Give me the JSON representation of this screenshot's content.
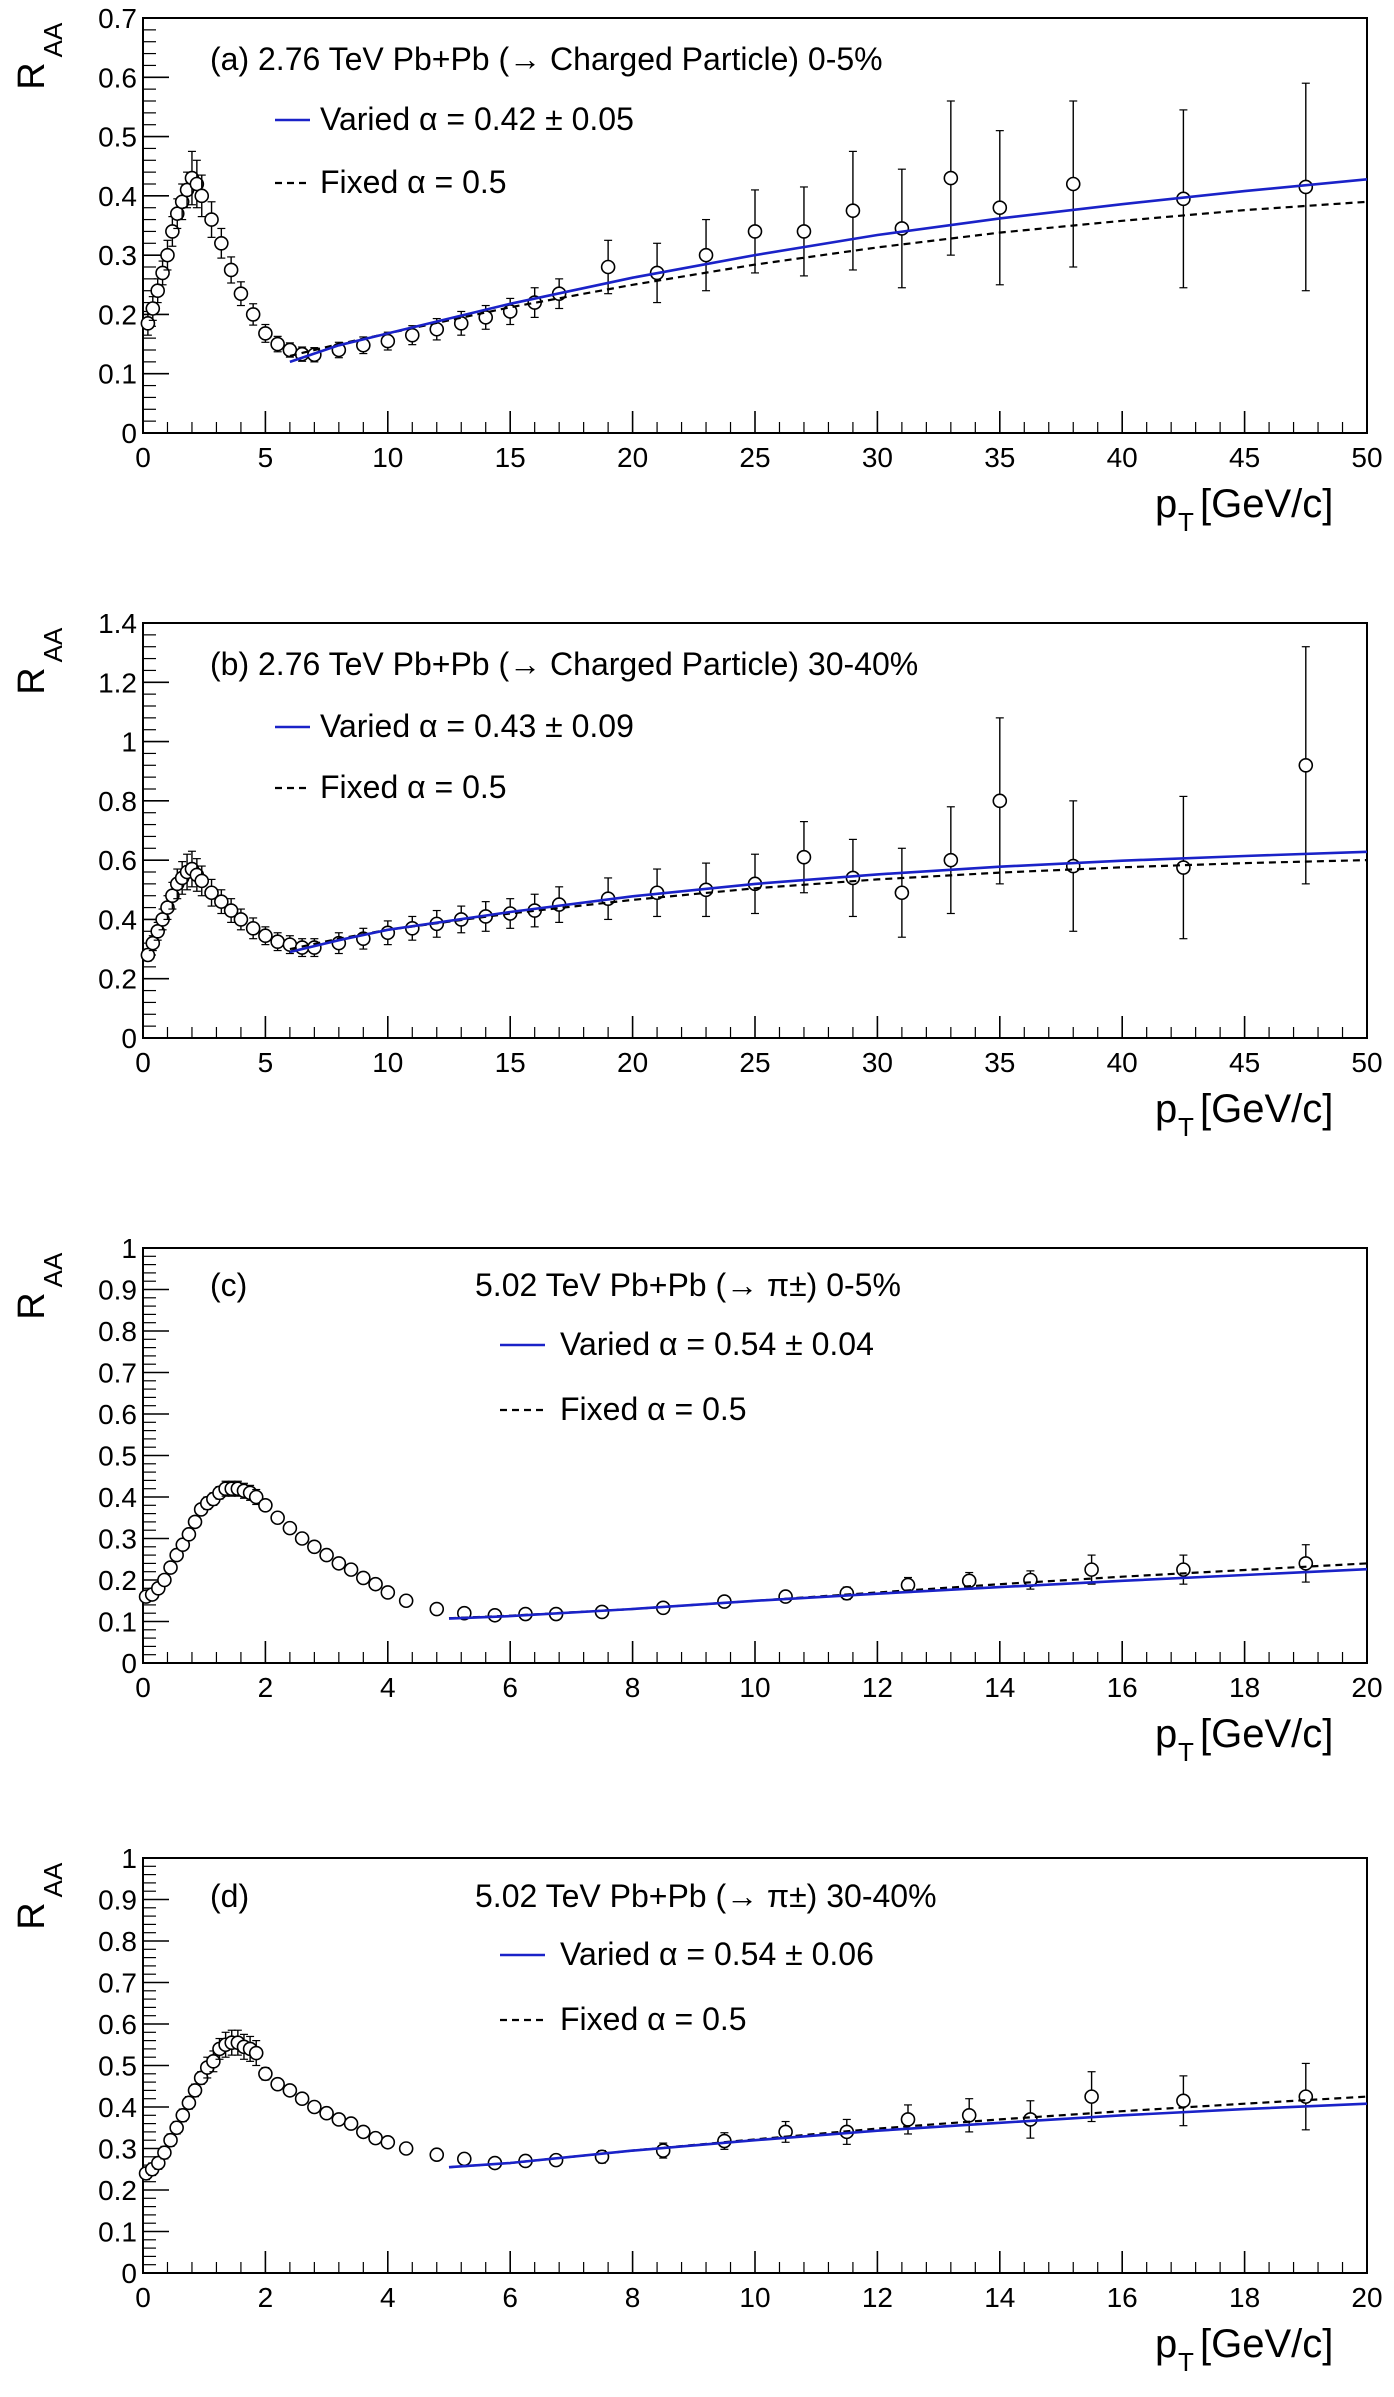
{
  "chart_data": [
    {
      "type": "scatter",
      "panel_label": "(a)",
      "title": "2.76 TeV Pb+Pb (→ Charged Particle) 0-5%",
      "ylabel": "R",
      "ylabel_sub": "AA",
      "xlabel": "p",
      "xlabel_sub": "T",
      "xlabel_unit": "[GeV/c]",
      "xlim": [
        0,
        50
      ],
      "ylim": [
        0,
        0.7
      ],
      "xticks": [
        0,
        5,
        10,
        15,
        20,
        25,
        30,
        35,
        40,
        45,
        50
      ],
      "yticks": [
        0,
        0.1,
        0.2,
        0.3,
        0.4,
        0.5,
        0.6,
        0.7
      ],
      "xtick_labels": [
        "0",
        "5",
        "10",
        "15",
        "20",
        "25",
        "30",
        "35",
        "40",
        "45",
        "50"
      ],
      "ytick_labels": [
        "0",
        "0.1",
        "0.2",
        "0.3",
        "0.4",
        "0.5",
        "0.6",
        "0.7"
      ],
      "grid": false,
      "legend_position": "top-left",
      "series": [
        {
          "name": "Varied α = 0.42 ± 0.05",
          "kind": "line",
          "style": "solid",
          "color": "#1a22c8",
          "x": [
            6.0,
            8,
            10,
            15,
            20,
            25,
            30,
            35,
            40,
            45,
            50
          ],
          "y": [
            0.12,
            0.148,
            0.168,
            0.218,
            0.262,
            0.3,
            0.334,
            0.362,
            0.386,
            0.408,
            0.428
          ]
        },
        {
          "name": "Fixed α = 0.5",
          "kind": "line",
          "style": "dashed",
          "color": "#000000",
          "x": [
            6.0,
            8,
            10,
            15,
            20,
            25,
            30,
            35,
            40,
            45,
            50
          ],
          "y": [
            0.13,
            0.15,
            0.168,
            0.212,
            0.25,
            0.284,
            0.313,
            0.338,
            0.358,
            0.376,
            0.39
          ]
        },
        {
          "name": "data",
          "kind": "points",
          "x": [
            0.2,
            0.4,
            0.6,
            0.8,
            1.0,
            1.2,
            1.4,
            1.6,
            1.8,
            2.0,
            2.2,
            2.4,
            2.8,
            3.2,
            3.6,
            4.0,
            4.5,
            5.0,
            5.5,
            6.0,
            6.5,
            7.0,
            8.0,
            9.0,
            10.0,
            11.0,
            12.0,
            13.0,
            14.0,
            15.0,
            16.0,
            17.0,
            19.0,
            21.0,
            23.0,
            25.0,
            27.0,
            29.0,
            31.0,
            33.0,
            35.0,
            38.0,
            42.5,
            47.5
          ],
          "y": [
            0.185,
            0.21,
            0.24,
            0.27,
            0.3,
            0.34,
            0.37,
            0.39,
            0.41,
            0.43,
            0.42,
            0.4,
            0.36,
            0.32,
            0.275,
            0.235,
            0.2,
            0.168,
            0.15,
            0.14,
            0.133,
            0.132,
            0.14,
            0.148,
            0.155,
            0.165,
            0.175,
            0.185,
            0.195,
            0.205,
            0.22,
            0.235,
            0.28,
            0.27,
            0.3,
            0.34,
            0.34,
            0.375,
            0.345,
            0.43,
            0.38,
            0.42,
            0.395,
            0.415
          ],
          "err": [
            0.02,
            0.02,
            0.02,
            0.02,
            0.025,
            0.025,
            0.025,
            0.03,
            0.03,
            0.045,
            0.04,
            0.035,
            0.03,
            0.025,
            0.022,
            0.02,
            0.018,
            0.015,
            0.013,
            0.012,
            0.012,
            0.012,
            0.013,
            0.014,
            0.015,
            0.016,
            0.018,
            0.02,
            0.02,
            0.022,
            0.025,
            0.025,
            0.045,
            0.05,
            0.06,
            0.07,
            0.075,
            0.1,
            0.1,
            0.13,
            0.13,
            0.14,
            0.15,
            0.175
          ]
        }
      ]
    },
    {
      "type": "scatter",
      "panel_label": "(b)",
      "title": "2.76 TeV Pb+Pb (→ Charged Particle) 30-40%",
      "ylabel": "R",
      "ylabel_sub": "AA",
      "xlabel": "p",
      "xlabel_sub": "T",
      "xlabel_unit": "[GeV/c]",
      "xlim": [
        0,
        50
      ],
      "ylim": [
        0,
        1.4
      ],
      "xticks": [
        0,
        5,
        10,
        15,
        20,
        25,
        30,
        35,
        40,
        45,
        50
      ],
      "yticks": [
        0,
        0.2,
        0.4,
        0.6,
        0.8,
        1.0,
        1.2,
        1.4
      ],
      "xtick_labels": [
        "0",
        "5",
        "10",
        "15",
        "20",
        "25",
        "30",
        "35",
        "40",
        "45",
        "50"
      ],
      "ytick_labels": [
        "0",
        "0.2",
        "0.4",
        "0.6",
        "0.8",
        "1",
        "1.2",
        "1.4"
      ],
      "grid": false,
      "legend_position": "top-left",
      "series": [
        {
          "name": "Varied α = 0.43 ± 0.09",
          "kind": "line",
          "style": "solid",
          "color": "#1a22c8",
          "x": [
            6.0,
            8,
            10,
            15,
            20,
            25,
            30,
            35,
            40,
            45,
            50
          ],
          "y": [
            0.29,
            0.33,
            0.365,
            0.425,
            0.478,
            0.52,
            0.552,
            0.578,
            0.598,
            0.614,
            0.628
          ]
        },
        {
          "name": "Fixed α = 0.5",
          "kind": "line",
          "style": "dashed",
          "color": "#000000",
          "x": [
            6.0,
            8,
            10,
            15,
            20,
            25,
            30,
            35,
            40,
            45,
            50
          ],
          "y": [
            0.3,
            0.335,
            0.365,
            0.42,
            0.466,
            0.505,
            0.535,
            0.558,
            0.576,
            0.59,
            0.6
          ]
        },
        {
          "name": "data",
          "kind": "points",
          "x": [
            0.2,
            0.4,
            0.6,
            0.8,
            1.0,
            1.2,
            1.4,
            1.6,
            1.8,
            2.0,
            2.2,
            2.4,
            2.8,
            3.2,
            3.6,
            4.0,
            4.5,
            5.0,
            5.5,
            6.0,
            6.5,
            7.0,
            8.0,
            9.0,
            10.0,
            11.0,
            12.0,
            13.0,
            14.0,
            15.0,
            16.0,
            17.0,
            19.0,
            21.0,
            23.0,
            25.0,
            27.0,
            29.0,
            31.0,
            33.0,
            35.0,
            38.0,
            42.5,
            47.5
          ],
          "y": [
            0.28,
            0.32,
            0.36,
            0.4,
            0.44,
            0.48,
            0.52,
            0.54,
            0.56,
            0.57,
            0.55,
            0.53,
            0.49,
            0.46,
            0.43,
            0.4,
            0.37,
            0.345,
            0.325,
            0.315,
            0.305,
            0.305,
            0.32,
            0.335,
            0.355,
            0.37,
            0.385,
            0.4,
            0.41,
            0.42,
            0.43,
            0.45,
            0.47,
            0.49,
            0.5,
            0.52,
            0.61,
            0.54,
            0.49,
            0.6,
            0.8,
            0.58,
            0.575,
            0.92
          ],
          "err": [
            0.02,
            0.025,
            0.03,
            0.035,
            0.04,
            0.045,
            0.05,
            0.055,
            0.06,
            0.06,
            0.055,
            0.05,
            0.045,
            0.04,
            0.04,
            0.035,
            0.035,
            0.03,
            0.03,
            0.03,
            0.03,
            0.03,
            0.035,
            0.035,
            0.04,
            0.04,
            0.045,
            0.045,
            0.05,
            0.05,
            0.055,
            0.06,
            0.07,
            0.08,
            0.09,
            0.1,
            0.12,
            0.13,
            0.15,
            0.18,
            0.28,
            0.22,
            0.24,
            0.4
          ]
        }
      ]
    },
    {
      "type": "scatter",
      "panel_label": "(c)",
      "title": "5.02 TeV Pb+Pb (→ π±) 0-5%",
      "ylabel": "R",
      "ylabel_sub": "AA",
      "xlabel": "p",
      "xlabel_sub": "T",
      "xlabel_unit": "[GeV/c]",
      "xlim": [
        0,
        20
      ],
      "ylim": [
        0,
        1.0
      ],
      "xticks": [
        0,
        2,
        4,
        6,
        8,
        10,
        12,
        14,
        16,
        18,
        20
      ],
      "yticks": [
        0,
        0.1,
        0.2,
        0.3,
        0.4,
        0.5,
        0.6,
        0.7,
        0.8,
        0.9,
        1.0
      ],
      "xtick_labels": [
        "0",
        "2",
        "4",
        "6",
        "8",
        "10",
        "12",
        "14",
        "16",
        "18",
        "20"
      ],
      "ytick_labels": [
        "0",
        "0.1",
        "0.2",
        "0.3",
        "0.4",
        "0.5",
        "0.6",
        "0.7",
        "0.8",
        "0.9",
        "1"
      ],
      "grid": false,
      "legend_position": "top-center",
      "series": [
        {
          "name": "Varied α = 0.54 ± 0.04",
          "kind": "line",
          "style": "solid",
          "color": "#1a22c8",
          "x": [
            5.0,
            6,
            8,
            10,
            12,
            14,
            16,
            18,
            20
          ],
          "y": [
            0.107,
            0.113,
            0.13,
            0.15,
            0.167,
            0.183,
            0.198,
            0.212,
            0.226
          ]
        },
        {
          "name": "Fixed α = 0.5",
          "kind": "line",
          "style": "dashed",
          "color": "#000000",
          "x": [
            5.0,
            6,
            8,
            10,
            12,
            14,
            16,
            18,
            20
          ],
          "y": [
            0.108,
            0.114,
            0.13,
            0.15,
            0.17,
            0.19,
            0.208,
            0.224,
            0.24
          ]
        },
        {
          "name": "data",
          "kind": "points",
          "x": [
            0.05,
            0.15,
            0.25,
            0.35,
            0.45,
            0.55,
            0.65,
            0.75,
            0.85,
            0.95,
            1.05,
            1.15,
            1.25,
            1.35,
            1.45,
            1.55,
            1.65,
            1.75,
            1.85,
            2.0,
            2.2,
            2.4,
            2.6,
            2.8,
            3.0,
            3.2,
            3.4,
            3.6,
            3.8,
            4.0,
            4.3,
            4.8,
            5.25,
            5.75,
            6.25,
            6.75,
            7.5,
            8.5,
            9.5,
            10.5,
            11.5,
            12.5,
            13.5,
            14.5,
            15.5,
            17.0,
            19.0
          ],
          "y": [
            0.16,
            0.165,
            0.18,
            0.2,
            0.23,
            0.26,
            0.285,
            0.31,
            0.34,
            0.37,
            0.385,
            0.395,
            0.41,
            0.42,
            0.42,
            0.42,
            0.415,
            0.41,
            0.4,
            0.38,
            0.35,
            0.325,
            0.3,
            0.28,
            0.26,
            0.24,
            0.225,
            0.205,
            0.19,
            0.17,
            0.15,
            0.13,
            0.12,
            0.115,
            0.118,
            0.118,
            0.123,
            0.133,
            0.148,
            0.16,
            0.168,
            0.188,
            0.198,
            0.2,
            0.225,
            0.225,
            0.24
          ],
          "err": [
            0.012,
            0.012,
            0.012,
            0.012,
            0.012,
            0.012,
            0.012,
            0.012,
            0.012,
            0.012,
            0.015,
            0.015,
            0.015,
            0.018,
            0.018,
            0.018,
            0.018,
            0.018,
            0.018,
            0.012,
            0.01,
            0.01,
            0.008,
            0.008,
            0.008,
            0.008,
            0.008,
            0.008,
            0.008,
            0.008,
            0.008,
            0.008,
            0.008,
            0.008,
            0.008,
            0.008,
            0.01,
            0.01,
            0.012,
            0.012,
            0.015,
            0.018,
            0.02,
            0.022,
            0.035,
            0.035,
            0.045
          ]
        }
      ]
    },
    {
      "type": "scatter",
      "panel_label": "(d)",
      "title": "5.02 TeV Pb+Pb (→ π±) 30-40%",
      "ylabel": "R",
      "ylabel_sub": "AA",
      "xlabel": "p",
      "xlabel_sub": "T",
      "xlabel_unit": "[GeV/c]",
      "xlim": [
        0,
        20
      ],
      "ylim": [
        0,
        1.0
      ],
      "xticks": [
        0,
        2,
        4,
        6,
        8,
        10,
        12,
        14,
        16,
        18,
        20
      ],
      "yticks": [
        0,
        0.1,
        0.2,
        0.3,
        0.4,
        0.5,
        0.6,
        0.7,
        0.8,
        0.9,
        1.0
      ],
      "xtick_labels": [
        "0",
        "2",
        "4",
        "6",
        "8",
        "10",
        "12",
        "14",
        "16",
        "18",
        "20"
      ],
      "ytick_labels": [
        "0",
        "0.1",
        "0.2",
        "0.3",
        "0.4",
        "0.5",
        "0.6",
        "0.7",
        "0.8",
        "0.9",
        "1"
      ],
      "grid": false,
      "legend_position": "top-center",
      "series": [
        {
          "name": "Varied α = 0.54 ± 0.06",
          "kind": "line",
          "style": "solid",
          "color": "#1a22c8",
          "x": [
            5.0,
            6,
            8,
            10,
            12,
            14,
            16,
            18,
            20
          ],
          "y": [
            0.255,
            0.265,
            0.295,
            0.32,
            0.343,
            0.362,
            0.38,
            0.395,
            0.408
          ]
        },
        {
          "name": "Fixed α = 0.5",
          "kind": "line",
          "style": "dashed",
          "color": "#000000",
          "x": [
            5.0,
            6,
            8,
            10,
            12,
            14,
            16,
            18,
            20
          ],
          "y": [
            0.255,
            0.265,
            0.295,
            0.322,
            0.348,
            0.37,
            0.39,
            0.408,
            0.425
          ]
        },
        {
          "name": "data",
          "kind": "points",
          "x": [
            0.05,
            0.15,
            0.25,
            0.35,
            0.45,
            0.55,
            0.65,
            0.75,
            0.85,
            0.95,
            1.05,
            1.15,
            1.25,
            1.35,
            1.45,
            1.55,
            1.65,
            1.75,
            1.85,
            2.0,
            2.2,
            2.4,
            2.6,
            2.8,
            3.0,
            3.2,
            3.4,
            3.6,
            3.8,
            4.0,
            4.3,
            4.8,
            5.25,
            5.75,
            6.25,
            6.75,
            7.5,
            8.5,
            9.5,
            10.5,
            11.5,
            12.5,
            13.5,
            14.5,
            15.5,
            17.0,
            19.0
          ],
          "y": [
            0.24,
            0.25,
            0.265,
            0.29,
            0.32,
            0.35,
            0.38,
            0.41,
            0.44,
            0.47,
            0.495,
            0.51,
            0.54,
            0.55,
            0.555,
            0.555,
            0.545,
            0.54,
            0.53,
            0.48,
            0.455,
            0.44,
            0.42,
            0.4,
            0.385,
            0.37,
            0.36,
            0.34,
            0.325,
            0.315,
            0.3,
            0.285,
            0.275,
            0.265,
            0.27,
            0.272,
            0.28,
            0.295,
            0.318,
            0.34,
            0.34,
            0.37,
            0.38,
            0.37,
            0.425,
            0.415,
            0.425
          ],
          "err": [
            0.015,
            0.015,
            0.015,
            0.015,
            0.015,
            0.015,
            0.015,
            0.015,
            0.015,
            0.015,
            0.025,
            0.025,
            0.025,
            0.03,
            0.03,
            0.03,
            0.03,
            0.03,
            0.03,
            0.015,
            0.012,
            0.012,
            0.01,
            0.01,
            0.01,
            0.01,
            0.01,
            0.01,
            0.01,
            0.01,
            0.01,
            0.012,
            0.012,
            0.012,
            0.012,
            0.012,
            0.015,
            0.018,
            0.02,
            0.025,
            0.03,
            0.035,
            0.04,
            0.045,
            0.06,
            0.06,
            0.08
          ]
        }
      ]
    }
  ]
}
